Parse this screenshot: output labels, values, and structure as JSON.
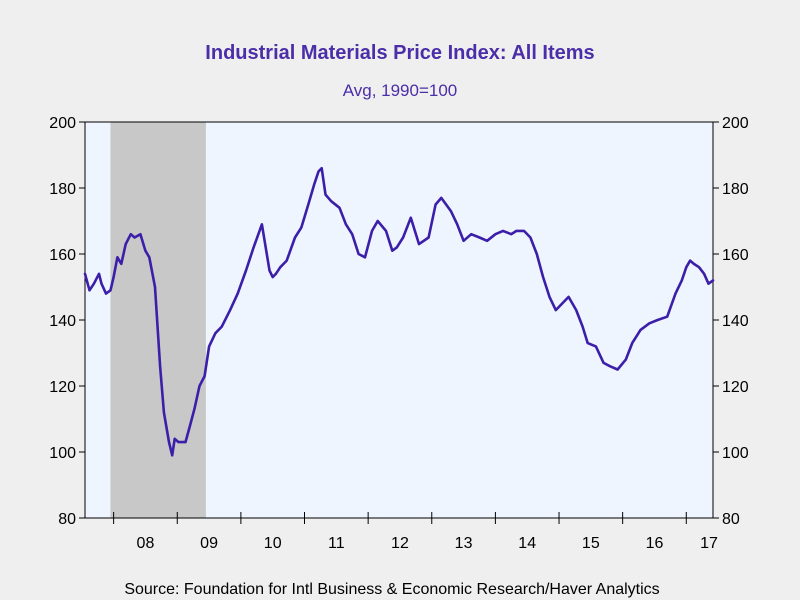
{
  "chart_data": {
    "type": "line",
    "title": "Industrial Materials Price Index: All Items",
    "subtitle": "Avg, 1990=100",
    "source": "Source:  Foundation for Intl Business & Economic Research/Haver Analytics",
    "xlabel": "",
    "ylabel": "",
    "ylim": [
      80,
      200
    ],
    "xlim": [
      2007.55,
      2017.42
    ],
    "yticks": [
      80,
      100,
      120,
      140,
      160,
      180,
      200
    ],
    "y_tick_labels": [
      "80",
      "100",
      "120",
      "140",
      "160",
      "180",
      "200"
    ],
    "x_tick_labels": [
      {
        "label": "08",
        "x": 2008.5
      },
      {
        "label": "09",
        "x": 2009.5
      },
      {
        "label": "10",
        "x": 2010.5
      },
      {
        "label": "11",
        "x": 2011.5
      },
      {
        "label": "12",
        "x": 2012.5
      },
      {
        "label": "13",
        "x": 2013.5
      },
      {
        "label": "14",
        "x": 2014.5
      },
      {
        "label": "15",
        "x": 2015.5
      },
      {
        "label": "16",
        "x": 2016.5
      },
      {
        "label": "17",
        "x": 2017.5
      }
    ],
    "x_year_boundaries": [
      2008,
      2009,
      2010,
      2011,
      2012,
      2013,
      2014,
      2015,
      2016,
      2017
    ],
    "recession": {
      "start": 2007.95,
      "end": 2009.45
    },
    "grid": false,
    "dual_y_axis": true,
    "colors": {
      "line": "#3c1fa8",
      "plot_bg": "#eef5ff",
      "recession": "#c8c8c8",
      "title": "#4b2ea8",
      "page_bg": "#efefef"
    },
    "series": [
      {
        "x": [
          2007.55,
          2007.62,
          2007.69,
          2007.77,
          2007.81,
          2007.88,
          2007.95,
          2008.0,
          2008.06,
          2008.12,
          2008.19,
          2008.27,
          2008.33,
          2008.42,
          2008.5,
          2008.56,
          2008.65,
          2008.73,
          2008.79,
          2008.87,
          2008.92,
          2008.96,
          2009.02,
          2009.08,
          2009.13,
          2009.2,
          2009.27,
          2009.35,
          2009.43,
          2009.5,
          2009.6,
          2009.7,
          2009.83,
          2009.95,
          2010.08,
          2010.2,
          2010.33,
          2010.45,
          2010.5,
          2010.55,
          2010.62,
          2010.72,
          2010.85,
          2010.95,
          2011.06,
          2011.15,
          2011.22,
          2011.27,
          2011.33,
          2011.42,
          2011.55,
          2011.65,
          2011.75,
          2011.85,
          2011.95,
          2012.06,
          2012.15,
          2012.28,
          2012.38,
          2012.45,
          2012.55,
          2012.67,
          2012.8,
          2012.95,
          2013.06,
          2013.15,
          2013.3,
          2013.4,
          2013.5,
          2013.62,
          2013.75,
          2013.87,
          2014.0,
          2014.12,
          2014.25,
          2014.33,
          2014.45,
          2014.55,
          2014.65,
          2014.75,
          2014.85,
          2014.95,
          2015.05,
          2015.15,
          2015.27,
          2015.37,
          2015.45,
          2015.58,
          2015.7,
          2015.8,
          2015.92,
          2016.05,
          2016.15,
          2016.28,
          2016.42,
          2016.55,
          2016.7,
          2016.83,
          2016.93,
          2017.0,
          2017.06,
          2017.12,
          2017.2,
          2017.28,
          2017.35,
          2017.42
        ],
        "values": [
          154,
          149,
          151,
          154,
          151,
          148,
          149,
          153,
          159,
          157,
          163,
          166,
          165,
          166,
          161,
          159,
          150,
          126,
          112,
          103,
          99,
          104,
          103,
          103,
          103,
          108,
          113,
          120,
          123,
          132,
          136,
          138,
          143,
          148,
          155,
          162,
          169,
          155,
          153,
          154,
          156,
          158,
          165,
          168,
          175,
          181,
          185,
          186,
          178,
          176,
          174,
          169,
          166,
          160,
          159,
          167,
          170,
          167,
          161,
          162,
          165,
          171,
          163,
          165,
          175,
          177,
          173,
          169,
          164,
          166,
          165,
          164,
          166,
          167,
          166,
          167,
          167,
          165,
          160,
          153,
          147,
          143,
          145,
          147,
          143,
          138,
          133,
          132,
          127,
          126,
          125,
          128,
          133,
          137,
          139,
          140,
          141,
          148,
          152,
          156,
          158,
          157,
          156,
          154,
          151,
          152
        ]
      }
    ]
  }
}
